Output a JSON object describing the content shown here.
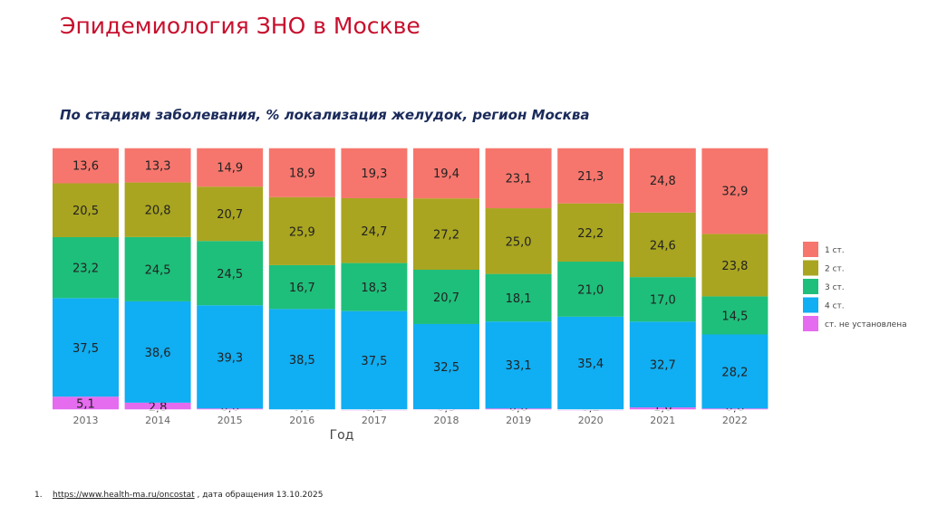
{
  "header": {
    "title": "Эпидемиология ЗНО в Москве"
  },
  "chart_data": {
    "type": "bar",
    "stacked": true,
    "title": "По стадиям заболевания, % локализация желудок, регион Москва",
    "xlabel": "Год",
    "ylabel": "",
    "ylim": [
      0,
      100
    ],
    "categories": [
      "2013",
      "2014",
      "2015",
      "2016",
      "2017",
      "2018",
      "2019",
      "2020",
      "2021",
      "2022"
    ],
    "series": [
      {
        "name": "ст. не установлена",
        "color": "#e56bef",
        "values": [
          5.1,
          2.8,
          0.6,
          0.0,
          0.2,
          0.3,
          0.6,
          0.2,
          1.0,
          0.6
        ]
      },
      {
        "name": "4 ст.",
        "color": "#10aef2",
        "values": [
          37.5,
          38.6,
          39.3,
          38.5,
          37.5,
          32.5,
          33.1,
          35.4,
          32.7,
          28.2
        ]
      },
      {
        "name": "3 ст.",
        "color": "#1ebf7b",
        "values": [
          23.2,
          24.5,
          24.5,
          16.7,
          18.3,
          20.7,
          18.1,
          21.0,
          17.0,
          14.5
        ]
      },
      {
        "name": "2 ст.",
        "color": "#a9a520",
        "values": [
          20.5,
          20.8,
          20.7,
          25.9,
          24.7,
          27.2,
          25.0,
          22.2,
          24.6,
          23.8
        ]
      },
      {
        "name": "1 ст.",
        "color": "#f6766d",
        "values": [
          13.6,
          13.3,
          14.9,
          18.9,
          19.3,
          19.4,
          23.1,
          21.3,
          24.8,
          32.9
        ]
      }
    ],
    "legend_order": [
      "1 ст.",
      "2 ст.",
      "3 ст.",
      "4 ст.",
      "ст. не установлена"
    ],
    "legend_position": "right"
  },
  "footnote": {
    "number": "1.",
    "link": "https://www.health-ma.ru/oncostat",
    "text": " , дата  обращения 13.10.2025"
  }
}
